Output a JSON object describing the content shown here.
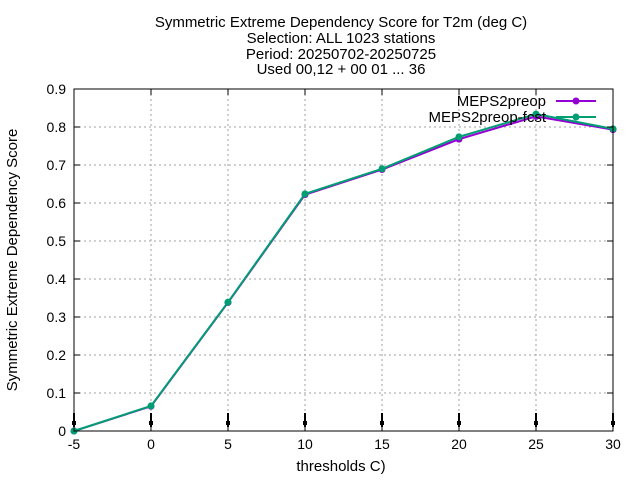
{
  "chart_data": {
    "type": "line",
    "title_lines": [
      "Symmetric Extreme Dependency Score  for T2m (deg C)",
      "Selection: ALL   1023 stations",
      "Period: 20250702-20250725",
      "Used 00,12 + 00 01 ... 36"
    ],
    "xlabel": "thresholds C)",
    "ylabel": "Symmetric Extreme Dependency Score",
    "xlim": [
      -5,
      30
    ],
    "ylim": [
      0,
      0.9
    ],
    "xticks": [
      "-5",
      "0",
      "5",
      "10",
      "15",
      "20",
      "25",
      "30"
    ],
    "yticks": [
      "0",
      "0.1",
      "0.2",
      "0.3",
      "0.4",
      "0.5",
      "0.6",
      "0.7",
      "0.8",
      "0.9"
    ],
    "grid": true,
    "legend_position": "top-right",
    "x": [
      -5,
      0,
      5,
      10,
      15,
      20,
      25,
      30
    ],
    "series": [
      {
        "name": "MEPS2preop",
        "color": "#9400d3",
        "values": [
          0.0,
          0.065,
          0.338,
          0.622,
          0.688,
          0.768,
          0.828,
          0.793
        ]
      },
      {
        "name": "MEPS2preop-fcst",
        "color": "#009e73",
        "values": [
          0.0,
          0.066,
          0.339,
          0.624,
          0.69,
          0.774,
          0.834,
          0.795
        ]
      }
    ],
    "marker_x": [
      -5,
      0,
      5,
      10,
      15,
      20,
      25,
      30
    ],
    "marker_color": "#000000"
  }
}
